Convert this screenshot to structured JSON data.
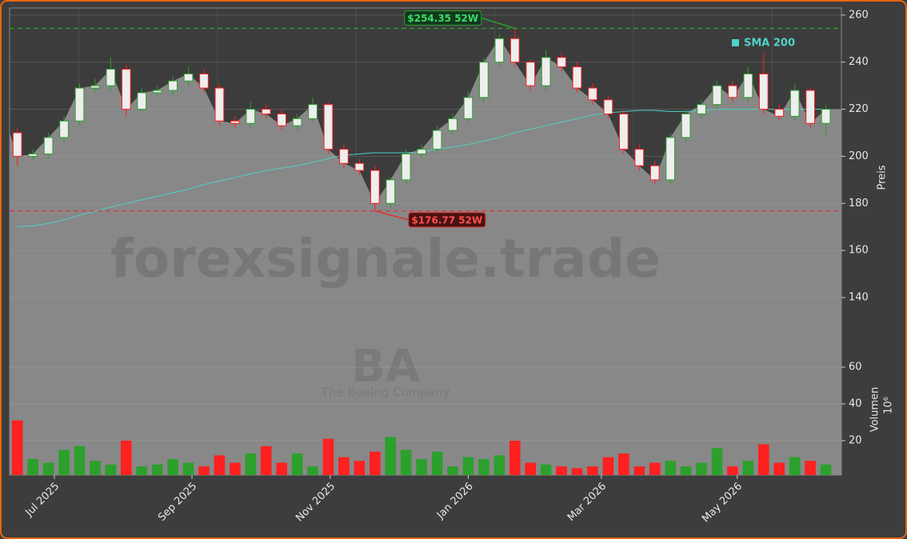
{
  "chart_data": [
    {
      "type": "candlestick",
      "watermark": "forexsignale.trade",
      "symbol": "BA",
      "company": "The Boeing Company",
      "ylabel": "Preis",
      "up_color": "#2ca02c",
      "down_color": "#ff2020",
      "open": [
        210,
        200,
        201,
        208,
        215,
        229,
        230,
        237,
        220,
        227,
        228,
        232,
        235,
        229,
        215,
        214,
        220,
        218,
        213,
        216,
        222,
        203,
        197,
        194,
        180,
        190,
        201,
        203,
        211,
        216,
        225,
        240,
        250,
        240,
        230,
        242,
        238,
        229,
        224,
        218,
        203,
        196,
        190,
        208,
        218,
        222,
        230,
        225,
        235,
        220,
        217,
        228,
        214
      ],
      "high": [
        212,
        203,
        210,
        217,
        231,
        233,
        242,
        239,
        229,
        230,
        234,
        238,
        237,
        231,
        217,
        223,
        222,
        220,
        218,
        225,
        223,
        205,
        199,
        196,
        191,
        203,
        205,
        213,
        218,
        228,
        242,
        252,
        254.35,
        241,
        245,
        244,
        240,
        231,
        226,
        220,
        205,
        198,
        210,
        220,
        224,
        232,
        232,
        238,
        244,
        222,
        231,
        229,
        222
      ],
      "low": [
        196,
        198,
        199,
        206,
        213,
        227,
        228,
        217,
        218,
        225,
        226,
        230,
        227,
        213,
        212,
        212,
        216,
        211,
        211,
        214,
        201,
        195,
        192,
        176.77,
        178,
        188,
        199,
        201,
        209,
        214,
        223,
        238,
        238,
        228,
        228,
        236,
        227,
        222,
        216,
        201,
        194,
        188,
        188,
        206,
        216,
        220,
        223,
        223,
        218,
        215,
        215,
        212,
        209
      ],
      "close": [
        200,
        201,
        208,
        215,
        229,
        230,
        237,
        220,
        227,
        228,
        232,
        235,
        229,
        215,
        214,
        220,
        218,
        213,
        216,
        222,
        203,
        197,
        194,
        180,
        190,
        201,
        203,
        211,
        216,
        225,
        240,
        250,
        240,
        230,
        242,
        238,
        229,
        224,
        218,
        203,
        196,
        190,
        208,
        218,
        222,
        230,
        225,
        235,
        220,
        217,
        228,
        214,
        220
      ],
      "series": [
        {
          "name": "SMA 200",
          "color": "#4fd1c5",
          "values": [
            170,
            170.5,
            171.5,
            173,
            175,
            176.5,
            178.5,
            180,
            181.5,
            183,
            184.5,
            186,
            188,
            189.5,
            191,
            192.5,
            194,
            195,
            196,
            197.5,
            199,
            200.5,
            201,
            201.5,
            201.5,
            201.5,
            202,
            203,
            204,
            205,
            206.5,
            208,
            210,
            211.5,
            213,
            214.5,
            216,
            217.5,
            218.5,
            219,
            219.5,
            219.5,
            219,
            219,
            219.5,
            220,
            220,
            220,
            220,
            220,
            220,
            220,
            220
          ]
        }
      ],
      "legend": "upper right",
      "annotations": [
        {
          "text": "$254.35 52W",
          "value": 254.35,
          "color": "#2ca02c"
        },
        {
          "text": "$176.77 52W",
          "value": 176.77,
          "color": "#e03030"
        }
      ],
      "xlim": [
        -0.5,
        53
      ],
      "ylim": [
        121,
        263
      ],
      "yticks": [
        140,
        160,
        180,
        200,
        220,
        240,
        260
      ],
      "grid": true
    },
    {
      "type": "bar",
      "ylabel": "Volumen",
      "unit": "10⁶",
      "values": [
        31,
        10,
        8,
        15,
        17,
        9,
        7,
        20,
        6,
        7,
        10,
        8,
        6,
        12,
        8,
        13,
        17,
        8,
        13,
        6,
        21,
        11,
        9,
        14,
        22,
        15,
        10,
        14,
        6,
        11,
        10,
        12,
        20,
        8,
        7,
        6,
        5,
        6,
        11,
        13,
        6,
        8,
        9,
        6,
        8,
        16,
        6,
        9,
        18,
        8,
        11,
        9,
        7
      ],
      "xlim": [
        -0.5,
        53
      ],
      "ylim": [
        1.3,
        73.5
      ],
      "yticks": [
        20,
        40,
        60
      ],
      "xticks": [
        {
          "value": 2.38,
          "label": "Jul 2025"
        },
        {
          "value": 11.23,
          "label": "Sep 2025"
        },
        {
          "value": 20.12,
          "label": "Nov 2025"
        },
        {
          "value": 29.0,
          "label": "Jan 2026"
        },
        {
          "value": 37.56,
          "label": "Mar 2026"
        },
        {
          "value": 46.3,
          "label": "May 2026"
        }
      ],
      "grid": true
    }
  ]
}
